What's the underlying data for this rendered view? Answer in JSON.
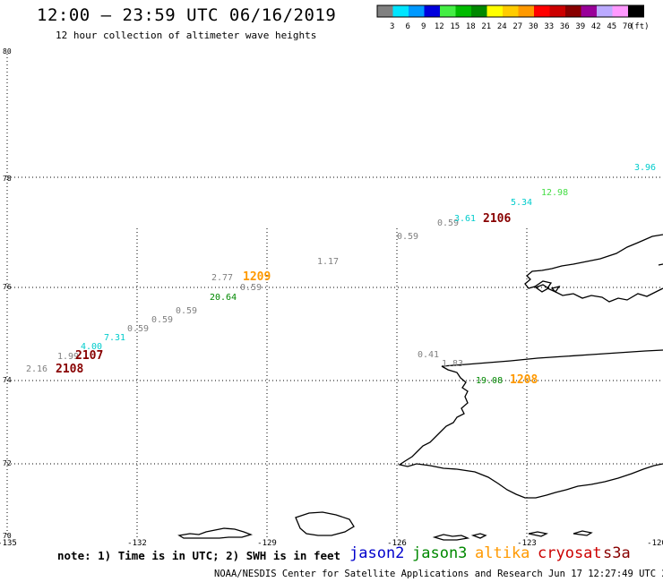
{
  "header": {
    "title": "12:00 – 23:59 UTC 06/16/2019",
    "subtitle": "12 hour collection of altimeter wave heights"
  },
  "colorbar": {
    "unit": "(ft)",
    "swatches": [
      {
        "label": "3",
        "color": "#808080"
      },
      {
        "label": "6",
        "color": "#00e5ff"
      },
      {
        "label": "9",
        "color": "#0099ff"
      },
      {
        "label": "12",
        "color": "#0000dd"
      },
      {
        "label": "15",
        "color": "#44ee44"
      },
      {
        "label": "18",
        "color": "#00bb00"
      },
      {
        "label": "21",
        "color": "#008800"
      },
      {
        "label": "24",
        "color": "#ffff00"
      },
      {
        "label": "27",
        "color": "#ffcc00"
      },
      {
        "label": "30",
        "color": "#ff9900"
      },
      {
        "label": "33",
        "color": "#ff0000"
      },
      {
        "label": "36",
        "color": "#cc0000"
      },
      {
        "label": "39",
        "color": "#880000"
      },
      {
        "label": "42",
        "color": "#990099"
      },
      {
        "label": "45",
        "color": "#bbaaff"
      },
      {
        "label": "70",
        "color": "#ff99ff"
      },
      {
        "label": "",
        "color": "#000000"
      }
    ]
  },
  "map": {
    "lon_labels": [
      "-135",
      "-132",
      "-129",
      "-126",
      "-123",
      "-120"
    ],
    "lat_labels": [
      "80",
      "78",
      "76",
      "74",
      "72",
      "70"
    ],
    "observations": [
      {
        "text": "3.96",
        "color": "#00cccc"
      },
      {
        "text": "12.98",
        "color": "#44dd44"
      },
      {
        "text": "5.34",
        "color": "#00cccc"
      },
      {
        "text": "0.59",
        "color": "#808080"
      },
      {
        "text": "3.61",
        "color": "#00cccc"
      },
      {
        "text": "2106",
        "color": "#880000"
      },
      {
        "text": "0.59",
        "color": "#808080"
      },
      {
        "text": "1.17",
        "color": "#808080"
      },
      {
        "text": "2.77",
        "color": "#808080"
      },
      {
        "text": "1209",
        "color": "#ff9900"
      },
      {
        "text": "0.59",
        "color": "#808080"
      },
      {
        "text": "20.64",
        "color": "#008800"
      },
      {
        "text": "0.59",
        "color": "#808080"
      },
      {
        "text": "0.59",
        "color": "#808080"
      },
      {
        "text": "0.59",
        "color": "#808080"
      },
      {
        "text": "7.31",
        "color": "#00cccc"
      },
      {
        "text": "4.00",
        "color": "#00cccc"
      },
      {
        "text": "1.99",
        "color": "#808080"
      },
      {
        "text": "2107",
        "color": "#880000"
      },
      {
        "text": "2.16",
        "color": "#808080"
      },
      {
        "text": "2108",
        "color": "#880000"
      },
      {
        "text": "0.41",
        "color": "#808080"
      },
      {
        "text": "1.83",
        "color": "#808080"
      },
      {
        "text": "19.08",
        "color": "#008800"
      },
      {
        "text": "1208",
        "color": "#ff9900"
      }
    ]
  },
  "footer": {
    "note": "note: 1) Time is in UTC; 2) SWH is in feet",
    "satellites": [
      {
        "name": "jason2",
        "color": "#0000cc"
      },
      {
        "name": "jason3",
        "color": "#008800"
      },
      {
        "name": "altika",
        "color": "#ff9900"
      },
      {
        "name": "cryosat",
        "color": "#cc0000"
      },
      {
        "name": "s3a",
        "color": "#880000"
      }
    ],
    "credit": "NOAA/NESDIS Center for Satellite Applications and Research   Jun 17 12:27:49 UTC 2019"
  }
}
